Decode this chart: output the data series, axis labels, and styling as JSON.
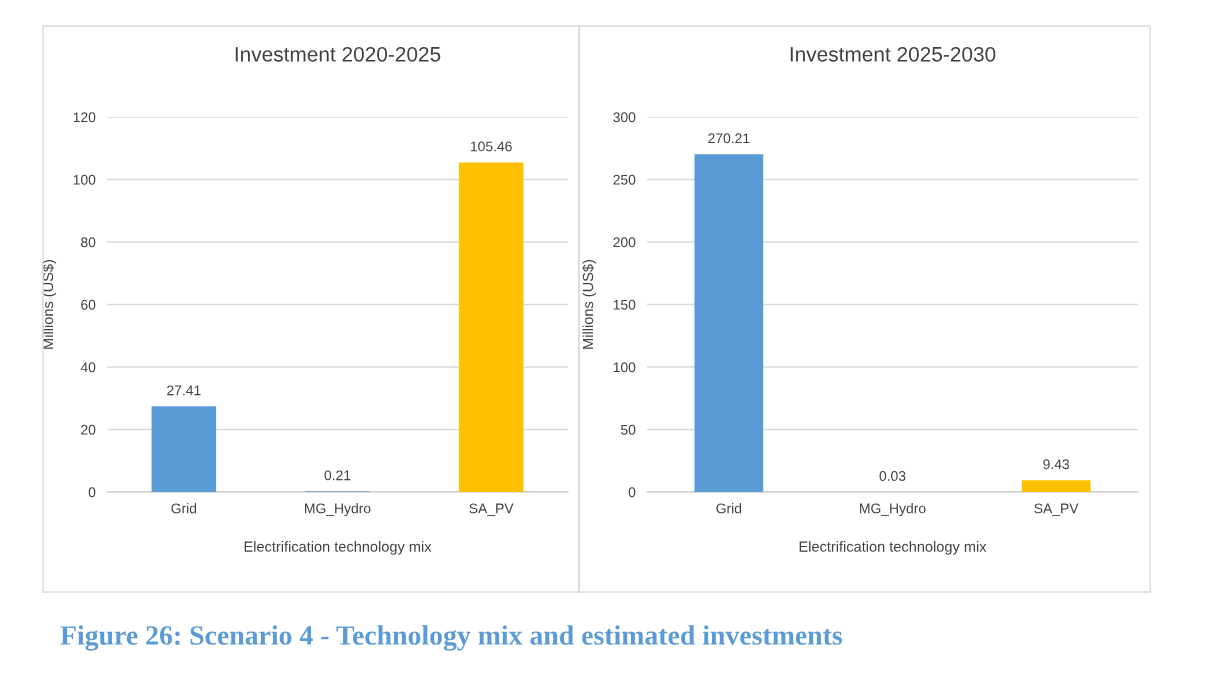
{
  "chart_data": [
    {
      "type": "bar",
      "title": "Investment 2020-2025",
      "xlabel": "Electrification technology mix",
      "ylabel": "Millions (US$)",
      "categories": [
        "Grid",
        "MG_Hydro",
        "SA_PV"
      ],
      "values": [
        27.41,
        0.21,
        105.46
      ],
      "colors": [
        "#5b9bd5",
        "#5b9bd5",
        "#ffc000"
      ],
      "ylim": [
        0,
        120
      ],
      "yticks": [
        0,
        20,
        40,
        60,
        80,
        100,
        120
      ],
      "grid": "y",
      "data_labels": true,
      "annotations": [
        "Figure 26: Scenario 4 - Technology mix and estimated investments"
      ]
    },
    {
      "type": "bar",
      "title": "Investment 2025-2030",
      "xlabel": "Electrification technology mix",
      "ylabel": "Millions (US$)",
      "categories": [
        "Grid",
        "MG_Hydro",
        "SA_PV"
      ],
      "values": [
        270.21,
        0.03,
        9.43
      ],
      "colors": [
        "#5b9bd5",
        "#5b9bd5",
        "#ffc000"
      ],
      "ylim": [
        0,
        300
      ],
      "yticks": [
        0,
        50,
        100,
        150,
        200,
        250,
        300
      ],
      "grid": "y",
      "data_labels": true
    }
  ]
}
